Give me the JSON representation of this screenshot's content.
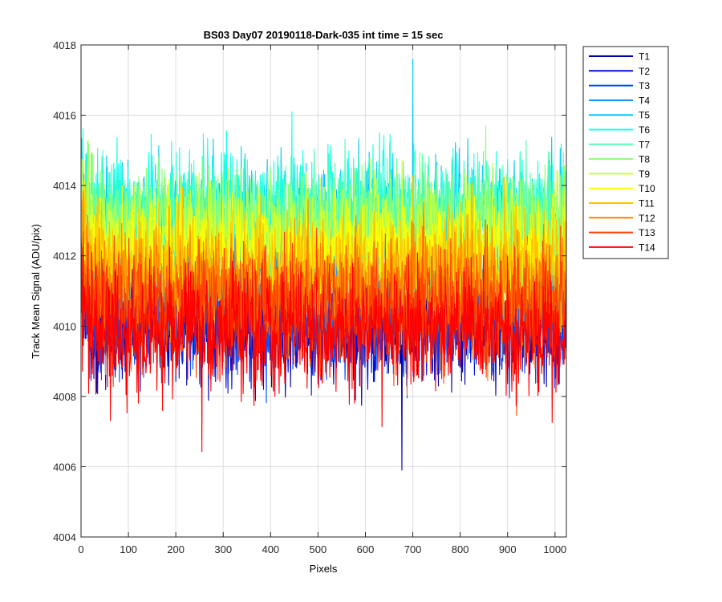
{
  "chart_data": {
    "type": "line",
    "title": "BS03 Day07 20190118-Dark-035 int time = 15 sec",
    "xlabel": "Pixels",
    "ylabel": "Track Mean Signal (ADU/pix)",
    "xlim": [
      0,
      1024
    ],
    "ylim": [
      4004,
      4018
    ],
    "xticks": [
      0,
      100,
      200,
      300,
      400,
      500,
      600,
      700,
      800,
      900,
      1000
    ],
    "yticks": [
      4004,
      4006,
      4008,
      4010,
      4012,
      4014,
      4016,
      4018
    ],
    "grid": true,
    "legend_position": "outside-top-right",
    "x_points": 1024,
    "series": [
      {
        "name": "T1",
        "color": "#0000a8",
        "mean": 4010.0,
        "spread": 0.75,
        "noise_seed": 11,
        "min_point": [
          677,
          4005.9
        ]
      },
      {
        "name": "T2",
        "color": "#0010d9",
        "mean": 4010.1,
        "spread": 0.75,
        "noise_seed": 23
      },
      {
        "name": "T3",
        "color": "#0050ff",
        "mean": 4010.3,
        "spread": 0.8,
        "noise_seed": 37
      },
      {
        "name": "T4",
        "color": "#0090ff",
        "mean": 4011.6,
        "spread": 0.85,
        "noise_seed": 41
      },
      {
        "name": "T5",
        "color": "#00c8ff",
        "mean": 4013.0,
        "spread": 0.85,
        "noise_seed": 53,
        "max_point": [
          700,
          4017.6
        ]
      },
      {
        "name": "T6",
        "color": "#18ffe8",
        "mean": 4013.2,
        "spread": 0.85,
        "noise_seed": 67
      },
      {
        "name": "T7",
        "color": "#50ffb0",
        "mean": 4013.0,
        "spread": 0.85,
        "noise_seed": 71
      },
      {
        "name": "T8",
        "color": "#8cff74",
        "mean": 4012.8,
        "spread": 0.85,
        "noise_seed": 83
      },
      {
        "name": "T9",
        "color": "#c8ff38",
        "mean": 4012.4,
        "spread": 0.85,
        "noise_seed": 97
      },
      {
        "name": "T10",
        "color": "#ffff00",
        "mean": 4012.0,
        "spread": 0.85,
        "noise_seed": 101
      },
      {
        "name": "T11",
        "color": "#ffc000",
        "mean": 4011.6,
        "spread": 0.85,
        "noise_seed": 113
      },
      {
        "name": "T12",
        "color": "#ff8000",
        "mean": 4011.0,
        "spread": 0.85,
        "noise_seed": 127
      },
      {
        "name": "T13",
        "color": "#ff4000",
        "mean": 4010.5,
        "spread": 0.85,
        "noise_seed": 131
      },
      {
        "name": "T14",
        "color": "#ff0000",
        "mean": 4009.9,
        "spread": 0.85,
        "noise_seed": 139
      }
    ]
  }
}
